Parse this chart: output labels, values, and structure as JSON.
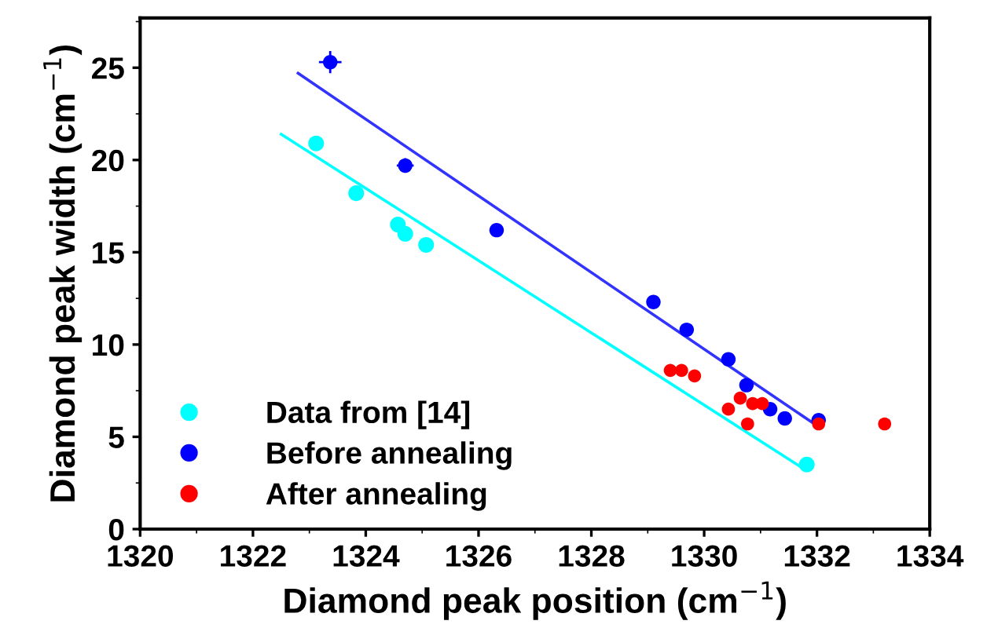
{
  "chart_data": {
    "type": "scatter",
    "xlabel": "Diamond peak position (cm$^{−1}$)",
    "ylabel": "Diamond peak width (cm$^{−1}$)",
    "xlim": [
      1320,
      1334
    ],
    "ylim": [
      0,
      27.7
    ],
    "xticks": [
      1320,
      1322,
      1324,
      1326,
      1328,
      1330,
      1332,
      1334
    ],
    "yticks": [
      0,
      5,
      10,
      15,
      20,
      25
    ],
    "legend": "bottom left",
    "marker": "circle",
    "grid": false,
    "series": [
      {
        "name": "Data from [14]",
        "color": "#00ffff",
        "x": [
          1323.12,
          1323.83,
          1324.57,
          1324.7,
          1325.07,
          1331.82
        ],
        "values": [
          20.9,
          18.2,
          16.5,
          16.0,
          15.4,
          3.5
        ]
      },
      {
        "name": "Before annealing",
        "color": "#0000ff",
        "x": [
          1323.37,
          1324.7,
          1326.32,
          1329.1,
          1329.69,
          1330.43,
          1330.75,
          1331.17,
          1331.43,
          1332.03
        ],
        "values": [
          25.3,
          19.7,
          16.2,
          12.3,
          10.8,
          9.2,
          7.8,
          6.5,
          6.0,
          5.9
        ],
        "errors": [
          0.6,
          0.4,
          null,
          null,
          null,
          null,
          null,
          null,
          null,
          null
        ],
        "xerrors": [
          0.2,
          0.15,
          null,
          null,
          null,
          null,
          null,
          null,
          null,
          null
        ]
      },
      {
        "name": "After annealing",
        "color": "#ff0000",
        "x": [
          1329.4,
          1329.6,
          1329.83,
          1330.43,
          1330.64,
          1330.86,
          1331.03,
          1330.77,
          1332.03,
          1333.2
        ],
        "values": [
          8.6,
          8.6,
          8.3,
          6.5,
          7.1,
          6.8,
          6.8,
          5.7,
          5.7,
          5.7
        ]
      },
      {
        "type": "line",
        "marker": "none",
        "color": "#00ffff",
        "x": [
          1322.5,
          1331.8
        ],
        "values": [
          21.4,
          3.2
        ]
      },
      {
        "type": "line",
        "marker": "none",
        "color": "#3333ff",
        "x": [
          1322.8,
          1332.0
        ],
        "values": [
          24.7,
          5.6
        ]
      }
    ]
  }
}
